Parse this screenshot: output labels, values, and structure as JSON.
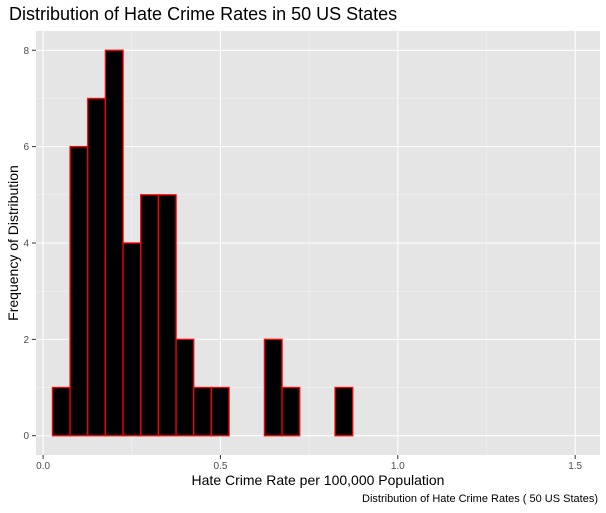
{
  "chart_data": {
    "type": "bar",
    "title": "Distribution of Hate Crime Rates in 50 US States",
    "caption": "Distribution of Hate Crime Rates ( 50 US States)",
    "xlabel": "Hate Crime Rate per 100,000 Population",
    "ylabel": "Frequency of Distribution",
    "xlim": [
      -0.02,
      1.57
    ],
    "ylim": [
      -0.4,
      8.4
    ],
    "bin_width": 0.0498,
    "bins_start": 0.0263,
    "counts": [
      1,
      6,
      7,
      8,
      4,
      5,
      5,
      2,
      1,
      1,
      0,
      0,
      2,
      1,
      0,
      0,
      1,
      0,
      0,
      0,
      0,
      0,
      0,
      0,
      0,
      0,
      0,
      0,
      0,
      0
    ],
    "x_ticks": [
      0.0,
      0.5,
      1.0,
      1.5
    ],
    "x_tick_labels": [
      "0.0",
      "0.5",
      "1.0",
      "1.5"
    ],
    "y_ticks": [
      0,
      2,
      4,
      6,
      8
    ],
    "y_tick_labels": [
      "0",
      "2",
      "4",
      "6",
      "8"
    ],
    "bar_fill": "#000000",
    "bar_outline": "#ff0000",
    "panel_background": "#e5e5e5",
    "grid": true
  }
}
